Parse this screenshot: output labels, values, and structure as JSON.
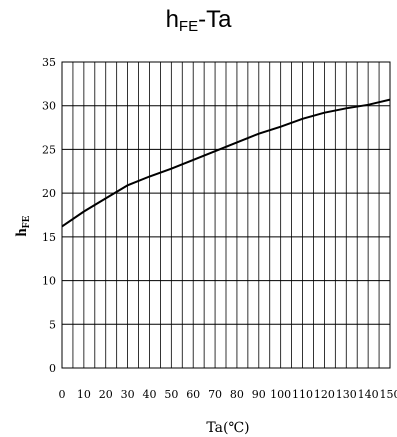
{
  "chart_data": {
    "type": "line",
    "title_main": "h",
    "title_sub": "FE",
    "title_rest": "-Ta",
    "xlabel": "Ta(℃)",
    "ylabel_main": "h",
    "ylabel_sub": "FE",
    "xlim": [
      0,
      150
    ],
    "ylim": [
      0,
      35
    ],
    "x_ticks": [
      0,
      10,
      20,
      30,
      40,
      50,
      60,
      70,
      80,
      90,
      100,
      110,
      120,
      130,
      140,
      150
    ],
    "y_ticks": [
      0,
      5,
      10,
      15,
      20,
      25,
      30,
      35
    ],
    "grid": true,
    "series": [
      {
        "x": [
          0,
          10,
          20,
          30,
          40,
          50,
          60,
          70,
          80,
          90,
          100,
          110,
          120,
          130,
          140,
          150
        ],
        "values": [
          16.2,
          17.9,
          19.4,
          20.9,
          21.9,
          22.8,
          23.8,
          24.8,
          25.8,
          26.8,
          27.6,
          28.5,
          29.2,
          29.7,
          30.1,
          30.7
        ]
      }
    ]
  }
}
